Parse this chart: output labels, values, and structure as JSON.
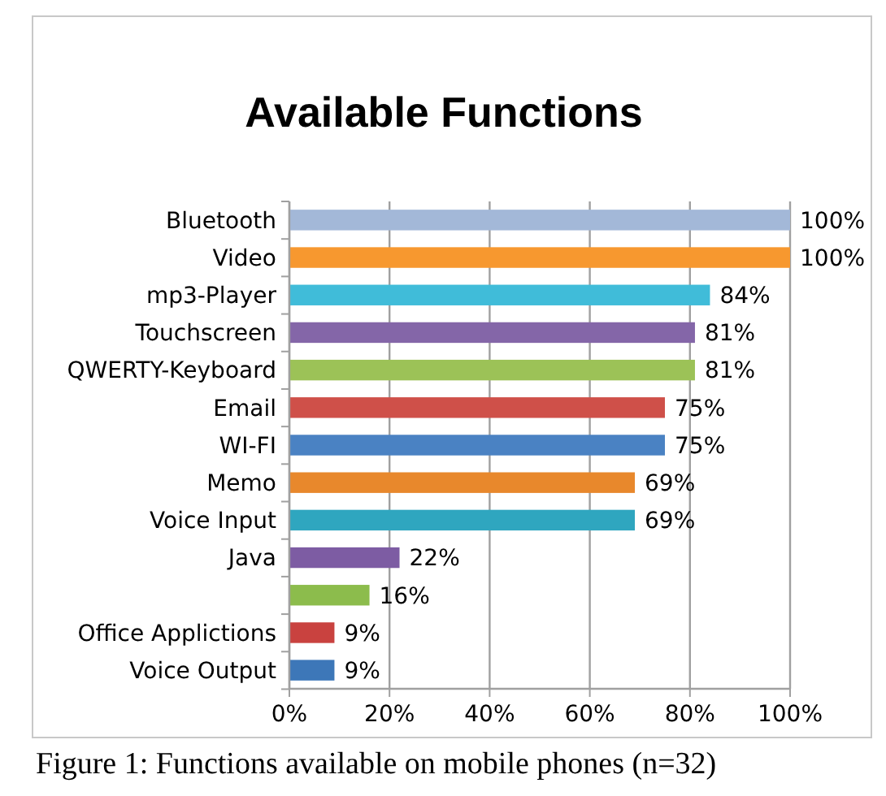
{
  "chart_data": {
    "type": "bar",
    "orientation": "horizontal",
    "title": "Available Functions",
    "categories": [
      "Bluetooth",
      "Video",
      "mp3-Player",
      "Touchscreen",
      "QWERTY-Keyboard",
      "Email",
      "WI-FI",
      "Memo",
      "Voice Input",
      "Java",
      null,
      "Office Applictions",
      "Voice Output"
    ],
    "values": [
      100,
      100,
      84,
      81,
      81,
      75,
      75,
      69,
      69,
      22,
      16,
      9,
      9
    ],
    "value_labels": [
      "100%",
      "100%",
      "84%",
      "81%",
      "81%",
      "75%",
      "75%",
      "69%",
      "69%",
      "22%",
      "16%",
      "9%",
      "9%"
    ],
    "colors": [
      "#a3b8d8",
      "#f7982f",
      "#40bcd9",
      "#8466a8",
      "#9cc257",
      "#cf5049",
      "#4a82c3",
      "#e8882c",
      "#2fa6bf",
      "#7d5ca3",
      "#8cbc4c",
      "#c9423f",
      "#3d77b8"
    ],
    "xlim": [
      0,
      100
    ],
    "xticks": [
      {
        "value": 0,
        "label": "0%"
      },
      {
        "value": 20,
        "label": "20%"
      },
      {
        "value": 40,
        "label": "40%"
      },
      {
        "value": 60,
        "label": "60%"
      },
      {
        "value": 80,
        "label": "80%"
      },
      {
        "value": 100,
        "label": "100%"
      }
    ],
    "grid": "x",
    "annotations": [
      "Figure 1: Functions available on mobile phones (n=32)"
    ]
  }
}
